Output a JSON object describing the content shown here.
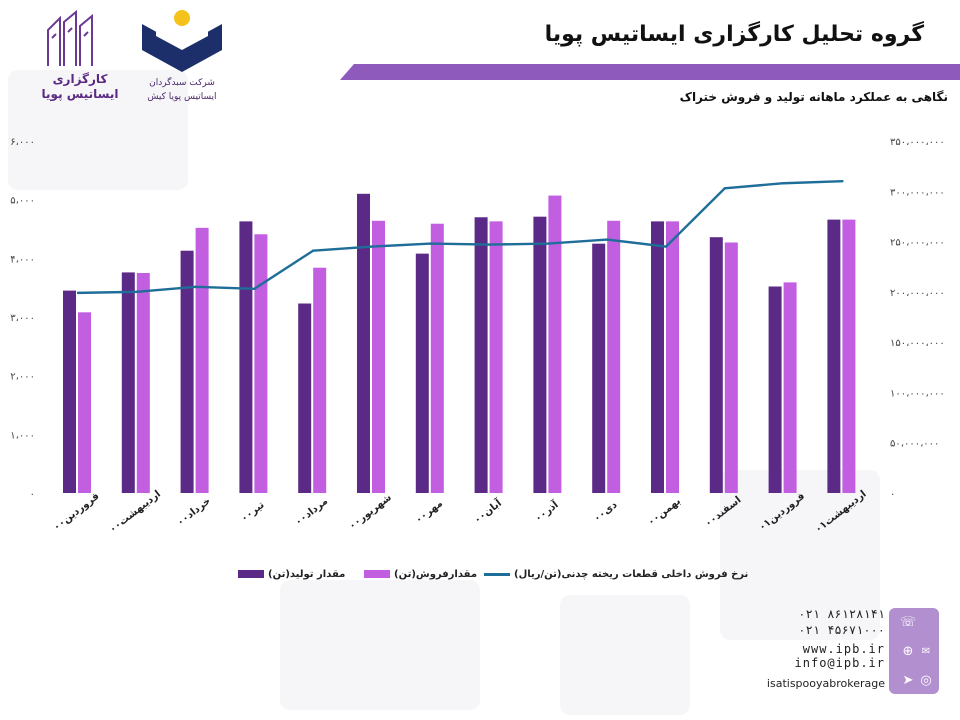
{
  "header": {
    "title": "گروه تحلیل کارگزاری ایساتیس پویا",
    "subtitle": "نگاهی به عملکرد ماهانه تولید و فروش ختراک"
  },
  "logos": {
    "left_brand_line1": "کارگزاری",
    "left_brand_line2": "ایساتیس پویا",
    "mid_line1": "شرکت سبدگردان",
    "mid_line2": "ایساتیس پویا کیش"
  },
  "colors": {
    "production": "#5b2a86",
    "sales": "#c15fe0",
    "price_line": "#1f6e99",
    "band": "#8e5bbd"
  },
  "legend": {
    "production": "مقدار تولید(تن)",
    "sales": "مقدارفروش(تن)",
    "price": "نرخ فروش داخلی قطعات ریخته چدنی(تن/ریال)"
  },
  "contact": {
    "phone1": "۰۲۱ ۸۶۱۲۸۱۴۱",
    "phone2": "۰۲۱ ۴۵۶۷۱۰۰۰",
    "website": "www.ipb.ir",
    "email": "info@ipb.ir",
    "instagram": "isatispooyabrokerage",
    "icons": [
      "phone-icon",
      "web-icon",
      "mail-icon",
      "telegram-icon",
      "instagram-icon"
    ]
  },
  "chart_data": {
    "type": "bar",
    "categories": [
      "فروردین۰۰",
      "اردیبهشت۰۰",
      "خرداد۰۰",
      "تیر۰۰",
      "مرداد۰۰",
      "شهریور۰۰",
      "مهر۰۰",
      "آبان۰۰",
      "آذر۰۰",
      "دی۰۰",
      "بهمن۰۰",
      "اسفند۰۰",
      "فروردین۰۱",
      "اردیبهشت۰۱"
    ],
    "series": [
      {
        "name": "مقدار تولید(تن)",
        "type": "bar",
        "axis": "left",
        "values": [
          3450,
          3760,
          4130,
          4630,
          3230,
          5100,
          4080,
          4700,
          4710,
          4250,
          4630,
          4360,
          3520,
          4660
        ]
      },
      {
        "name": "مقدارفروش(تن)",
        "type": "bar",
        "axis": "left",
        "values": [
          3080,
          3750,
          4520,
          4410,
          3840,
          4640,
          4590,
          4630,
          5070,
          4640,
          4630,
          4270,
          3590,
          4660
        ]
      },
      {
        "name": "نرخ فروش داخلی قطعات ریخته چدنی(تن/ریال)",
        "type": "line",
        "axis": "right",
        "values": [
          199000000,
          200000000,
          205000000,
          203000000,
          241000000,
          245000000,
          248000000,
          247000000,
          248000000,
          252000000,
          245000000,
          303000000,
          308000000,
          310000000
        ]
      }
    ],
    "y_left": {
      "min": 0,
      "max": 6000,
      "ticks": [
        "۰",
        "۱،۰۰۰",
        "۲،۰۰۰",
        "۳،۰۰۰",
        "۴،۰۰۰",
        "۵،۰۰۰",
        "۶،۰۰۰"
      ]
    },
    "y_right": {
      "min": 0,
      "max": 350000000,
      "ticks": [
        "۰",
        "۵۰،۰۰۰،۰۰۰",
        "۱۰۰،۰۰۰،۰۰۰",
        "۱۵۰،۰۰۰،۰۰۰",
        "۲۰۰،۰۰۰،۰۰۰",
        "۲۵۰،۰۰۰،۰۰۰",
        "۳۰۰،۰۰۰،۰۰۰",
        "۳۵۰،۰۰۰،۰۰۰"
      ]
    },
    "grid": false,
    "legend_position": "bottom"
  }
}
